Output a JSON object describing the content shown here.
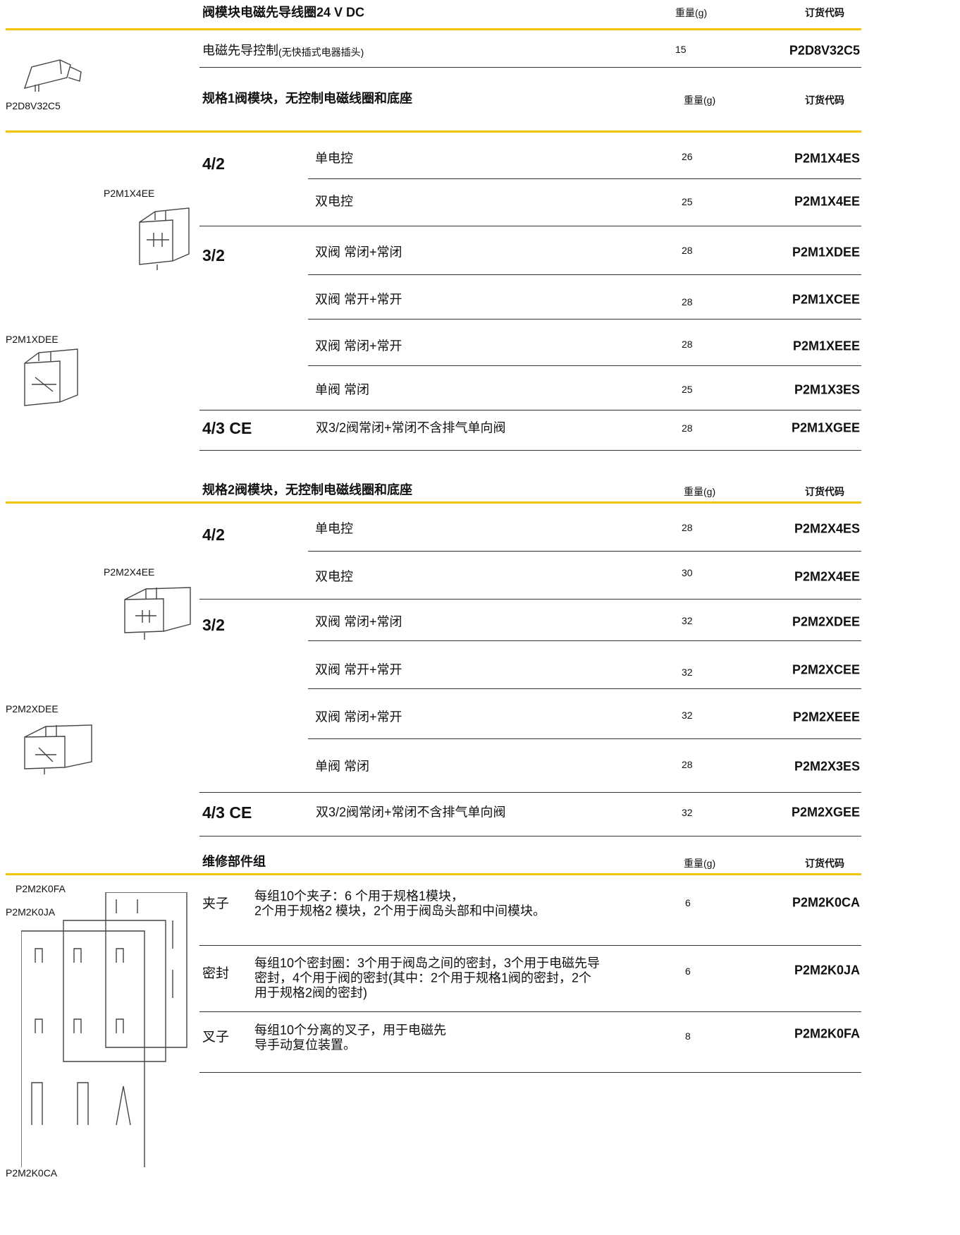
{
  "sections": [
    {
      "title": "阀模块电磁先导线圈24 V DC",
      "weight_header": "重量(g)",
      "code_header": "订货代码",
      "rows": [
        {
          "desc": "电磁先导控制",
          "note": "(无快插式电器插头)",
          "weight": 15,
          "code": "P2D8V32C5"
        }
      ],
      "image_labels": [
        "P2D8V32C5"
      ]
    },
    {
      "title": "规格1阀模块，无控制电磁线圈和底座",
      "weight_header": "重量(g)",
      "code_header": "订货代码",
      "groups": [
        {
          "type": "4/2",
          "rows": [
            {
              "desc": "单电控",
              "weight": 26,
              "code": "P2M1X4ES"
            },
            {
              "desc": "双电控",
              "weight": 25,
              "code": "P2M1X4EE"
            }
          ]
        },
        {
          "type": "3/2",
          "rows": [
            {
              "desc": "双阀 常闭+常闭",
              "weight": 28,
              "code": "P2M1XDEE"
            },
            {
              "desc": "双阀 常开+常开",
              "weight": 28,
              "code": "P2M1XCEE"
            },
            {
              "desc": "双阀 常闭+常开",
              "weight": 28,
              "code": "P2M1XEEE"
            },
            {
              "desc": "单阀 常闭",
              "weight": 25,
              "code": "P2M1X3ES"
            }
          ]
        },
        {
          "type": "4/3 CE",
          "rows": [
            {
              "desc": "双3/2阀常闭+常闭不含排气单向阀",
              "weight": 28,
              "code": "P2M1XGEE"
            }
          ]
        }
      ],
      "image_labels": [
        "P2M1X4EE",
        "P2M1XDEE"
      ]
    },
    {
      "title": "规格2阀模块，无控制电磁线圈和底座",
      "weight_header": "重量(g)",
      "code_header": "订货代码",
      "groups": [
        {
          "type": "4/2",
          "rows": [
            {
              "desc": "单电控",
              "weight": 28,
              "code": "P2M2X4ES"
            },
            {
              "desc": "双电控",
              "weight": 30,
              "code": "P2M2X4EE"
            }
          ]
        },
        {
          "type": "3/2",
          "rows": [
            {
              "desc": "双阀 常闭+常闭",
              "weight": 32,
              "code": "P2M2XDEE"
            },
            {
              "desc": "双阀 常开+常开",
              "weight": 32,
              "code": "P2M2XCEE"
            },
            {
              "desc": "双阀 常闭+常开",
              "weight": 32,
              "code": "P2M2XEEE"
            },
            {
              "desc": "单阀 常闭",
              "weight": 28,
              "code": "P2M2X3ES"
            }
          ]
        },
        {
          "type": "4/3 CE",
          "rows": [
            {
              "desc": "双3/2阀常闭+常闭不含排气单向阀",
              "weight": 32,
              "code": "P2M2XGEE"
            }
          ]
        }
      ],
      "image_labels": [
        "P2M2X4EE",
        "P2M2XDEE"
      ]
    },
    {
      "title": "维修部件组",
      "weight_header": "重量(g)",
      "code_header": "订货代码",
      "rows": [
        {
          "part": "夹子",
          "desc": [
            "每组10个夹子：6 个用于规格1模块，",
            "2个用于规格2 模块，2个用于阀岛头部和中间模块。"
          ],
          "weight": 6,
          "code": "P2M2K0CA"
        },
        {
          "part": "密封",
          "desc": [
            "每组10个密封圈：3个用于阀岛之间的密封，3个用于电磁先导",
            "密封，4个用于阀的密封(其中：2个用于规格1阀的密封，2个",
            "用于规格2阀的密封)"
          ],
          "weight": 6,
          "code": "P2M2K0JA"
        },
        {
          "part": "叉子",
          "desc": [
            "每组10个分离的叉子，用于电磁先",
            "导手动复位装置。"
          ],
          "weight": 8,
          "code": "P2M2K0FA"
        }
      ],
      "image_labels": [
        "P2M2K0FA",
        "P2M2K0JA",
        "P2M2K0CA"
      ]
    }
  ]
}
